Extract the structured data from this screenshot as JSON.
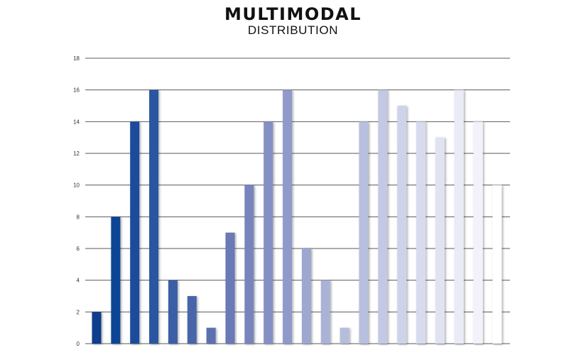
{
  "chart_data": {
    "type": "bar",
    "title": "MULTIMODAL",
    "subtitle": "DISTRIBUTION",
    "xlabel": "",
    "ylabel": "",
    "ylim": [
      0,
      18
    ],
    "yticks": [
      0,
      2,
      4,
      6,
      8,
      10,
      12,
      14,
      16,
      18
    ],
    "grid": true,
    "legend": "none",
    "values": [
      2,
      8,
      14,
      16,
      4,
      3,
      1,
      7,
      10,
      14,
      16,
      6,
      4,
      1,
      14,
      16,
      15,
      14,
      13,
      16,
      14,
      10
    ],
    "colors": [
      "#0b3d8c",
      "#0e4496",
      "#1f4c9c",
      "#2a55a1",
      "#3a5ea6",
      "#4865a9",
      "#5a6fb0",
      "#6a7ab6",
      "#7885bd",
      "#8490c3",
      "#8f9aca",
      "#9ea7d0",
      "#aab2d6",
      "#b6bcdc",
      "#b9bfdf",
      "#c3c8e4",
      "#cfd3ea",
      "#d8dbee",
      "#e1e3f2",
      "#e9ebf6",
      "#f1f2fa",
      "#ffffff"
    ]
  }
}
